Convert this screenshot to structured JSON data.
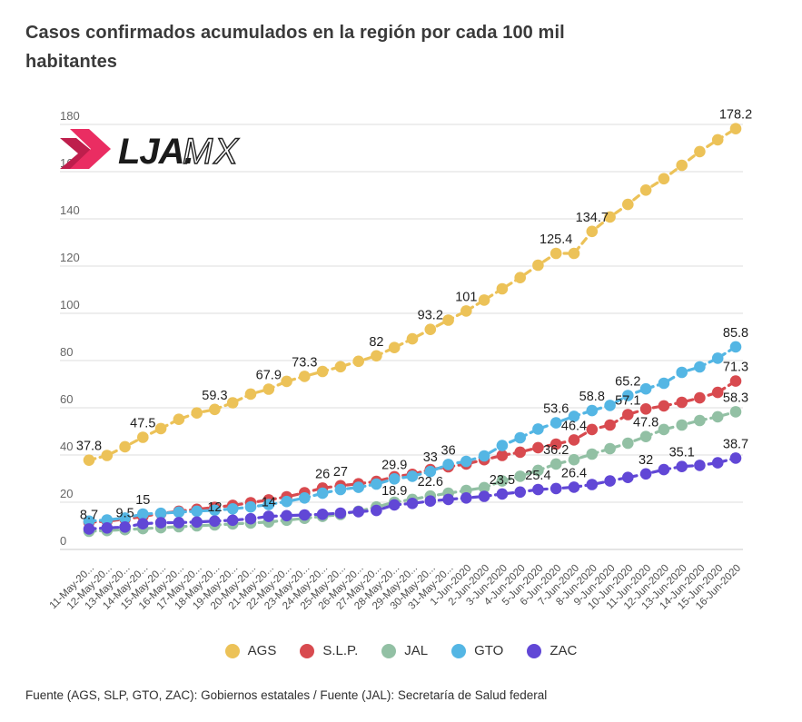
{
  "page": {
    "title_line1": "Casos confirmados acumulados en la región por cada 100 mil",
    "title_line2": "habitantes",
    "footer": "Fuente (AGS, SLP, GTO, ZAC): Gobiernos estatales / Fuente (JAL): Secretaría de Salud federal"
  },
  "logo": {
    "brand_bold": "LJA.",
    "brand_light": "MX",
    "chevron_pink": "#ea2d62",
    "chevron_dark": "#be1e4c",
    "text_color": "#1b1b1b"
  },
  "chart_data": {
    "type": "line",
    "title": "Casos confirmados acumulados en la región por cada 100 mil habitantes",
    "xlabel": "",
    "ylabel": "",
    "ylim": [
      0,
      180
    ],
    "y_ticks": [
      0,
      20,
      40,
      60,
      80,
      100,
      120,
      140,
      160,
      180
    ],
    "grid": true,
    "legend_position": "bottom",
    "style": "dashed-line-with-dots",
    "x": [
      "11-May-20...",
      "12-May-20...",
      "13-May-20...",
      "14-May-20...",
      "15-May-20...",
      "16-May-20...",
      "17-May-20...",
      "18-May-20...",
      "19-May-20...",
      "20-May-20...",
      "21-May-20...",
      "22-May-20...",
      "23-May-20...",
      "24-May-20...",
      "25-May-20...",
      "26-May-20...",
      "27-May-20...",
      "28-May-20...",
      "29-May-20...",
      "30-May-20...",
      "31-May-20...",
      "1-Jun-2020",
      "2-Jun-2020",
      "3-Jun-2020",
      "4-Jun-2020",
      "5-Jun-2020",
      "6-Jun-2020",
      "7-Jun-2020",
      "8-Jun-2020",
      "9-Jun-2020",
      "10-Jun-2020",
      "11-Jun-2020",
      "12-Jun-2020",
      "13-Jun-2020",
      "14-Jun-2020",
      "15-Jun-2020",
      "16-Jun-2020"
    ],
    "series": [
      {
        "name": "AGS",
        "color": "#ecc258",
        "values": [
          37.8,
          39.8,
          43.5,
          47.5,
          51.2,
          55.1,
          57.8,
          59.3,
          62.1,
          65.8,
          67.9,
          71.2,
          73.3,
          75.4,
          77.4,
          79.7,
          82,
          85.5,
          89.2,
          93.2,
          97.1,
          101,
          105.6,
          110.4,
          115.1,
          120.4,
          125.4,
          125.4,
          134.7,
          140.8,
          146.1,
          152.2,
          157,
          162.7,
          168.5,
          173.5,
          178.2
        ]
      },
      {
        "name": "S.L.P.",
        "color": "#d84a4f",
        "values": [
          11.5,
          12,
          12.8,
          14,
          15.2,
          16.2,
          17,
          17.8,
          18.7,
          19.8,
          21,
          22.3,
          24,
          26,
          27,
          27.8,
          28.8,
          30.8,
          31.8,
          33.8,
          35,
          36.2,
          38,
          39.8,
          41.2,
          43.1,
          44.6,
          46.4,
          50.8,
          52.7,
          57.1,
          59.5,
          60.8,
          62.3,
          64.2,
          66.5,
          71.3
        ]
      },
      {
        "name": "JAL",
        "color": "#92c0a4",
        "values": [
          7.7,
          8,
          8.4,
          8.8,
          9.2,
          9.6,
          10,
          10.4,
          10.8,
          11.2,
          11.6,
          12.4,
          13.2,
          14,
          14.8,
          16.2,
          18,
          20,
          21.2,
          22.6,
          23.8,
          25,
          26.2,
          29,
          31,
          33.5,
          36.2,
          38,
          40.4,
          42.7,
          45,
          47.8,
          50.8,
          52.7,
          54.6,
          56.2,
          58.3
        ]
      },
      {
        "name": "GTO",
        "color": "#54b6e4",
        "values": [
          12,
          12.5,
          13.3,
          15,
          15.3,
          15.8,
          16.2,
          16.6,
          17.2,
          18,
          19,
          20.3,
          21.8,
          23.8,
          25.4,
          26.3,
          27.7,
          29.9,
          31,
          33,
          36,
          37.3,
          39.6,
          44,
          47.3,
          51,
          53.6,
          56.4,
          58.8,
          61,
          65.2,
          68,
          70.4,
          75,
          77.3,
          81,
          85.8
        ]
      },
      {
        "name": "ZAC",
        "color": "#6147d6",
        "values": [
          8.7,
          9.1,
          9.5,
          10.9,
          11.3,
          11.4,
          11.6,
          12,
          12.4,
          13,
          14,
          14.3,
          14.6,
          14.9,
          15.4,
          16,
          16.5,
          18.9,
          19.5,
          20.5,
          21.2,
          21.8,
          22.5,
          23.5,
          24.3,
          25.4,
          25.8,
          26.4,
          27.5,
          29,
          30.5,
          32,
          33.8,
          35.1,
          35.6,
          36.7,
          38.7
        ]
      }
    ],
    "point_labels": [
      {
        "series": 0,
        "index": 0,
        "text": "37.8"
      },
      {
        "series": 0,
        "index": 3,
        "text": "47.5"
      },
      {
        "series": 0,
        "index": 7,
        "text": "59.3"
      },
      {
        "series": 0,
        "index": 10,
        "text": "67.9"
      },
      {
        "series": 0,
        "index": 12,
        "text": "73.3"
      },
      {
        "series": 0,
        "index": 16,
        "text": "82"
      },
      {
        "series": 0,
        "index": 19,
        "text": "93.2"
      },
      {
        "series": 0,
        "index": 21,
        "text": "101"
      },
      {
        "series": 0,
        "index": 26,
        "text": "125.4"
      },
      {
        "series": 0,
        "index": 28,
        "text": "134.7"
      },
      {
        "series": 0,
        "index": 36,
        "text": "178.2"
      },
      {
        "series": 1,
        "index": 13,
        "text": "26"
      },
      {
        "series": 1,
        "index": 14,
        "text": "27"
      },
      {
        "series": 1,
        "index": 27,
        "text": "46.4"
      },
      {
        "series": 1,
        "index": 30,
        "text": "57.1"
      },
      {
        "series": 1,
        "index": 36,
        "text": "71.3"
      },
      {
        "series": 2,
        "index": 19,
        "text": "22.6"
      },
      {
        "series": 2,
        "index": 26,
        "text": "36.2"
      },
      {
        "series": 2,
        "index": 31,
        "text": "47.8"
      },
      {
        "series": 2,
        "index": 36,
        "text": "58.3"
      },
      {
        "series": 3,
        "index": 3,
        "text": "15"
      },
      {
        "series": 3,
        "index": 17,
        "text": "29.9"
      },
      {
        "series": 3,
        "index": 19,
        "text": "33"
      },
      {
        "series": 3,
        "index": 20,
        "text": "36"
      },
      {
        "series": 3,
        "index": 26,
        "text": "53.6"
      },
      {
        "series": 3,
        "index": 28,
        "text": "58.8"
      },
      {
        "series": 3,
        "index": 30,
        "text": "65.2"
      },
      {
        "series": 3,
        "index": 36,
        "text": "85.8"
      },
      {
        "series": 4,
        "index": 0,
        "text": "8.7"
      },
      {
        "series": 4,
        "index": 2,
        "text": "9.5"
      },
      {
        "series": 4,
        "index": 7,
        "text": "12"
      },
      {
        "series": 4,
        "index": 10,
        "text": "14"
      },
      {
        "series": 4,
        "index": 17,
        "text": "18.9"
      },
      {
        "series": 4,
        "index": 23,
        "text": "23.5"
      },
      {
        "series": 4,
        "index": 25,
        "text": "25.4"
      },
      {
        "series": 4,
        "index": 27,
        "text": "26.4"
      },
      {
        "series": 4,
        "index": 31,
        "text": "32"
      },
      {
        "series": 4,
        "index": 33,
        "text": "35.1"
      },
      {
        "series": 4,
        "index": 36,
        "text": "38.7"
      }
    ]
  }
}
